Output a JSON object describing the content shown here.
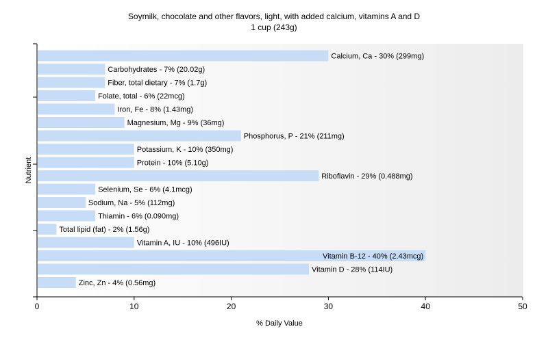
{
  "chart_data": {
    "type": "bar",
    "orientation": "horizontal",
    "title": "Soymilk, chocolate and other flavors, light, with added calcium, vitamins A and D",
    "subtitle": "1 cup (243g)",
    "xlabel": "% Daily Value",
    "ylabel": "Nutrient",
    "xlim": [
      0,
      50
    ],
    "xticks": [
      "0",
      "10",
      "20",
      "30",
      "40",
      "50"
    ],
    "grid": false,
    "bar_color": "#c6dcf7",
    "background_gradient": [
      "#ffffff",
      "#ececec"
    ],
    "categories": [
      "Calcium, Ca",
      "Carbohydrates",
      "Fiber, total dietary",
      "Folate, total",
      "Iron, Fe",
      "Magnesium, Mg",
      "Phosphorus, P",
      "Potassium, K",
      "Protein",
      "Riboflavin",
      "Selenium, Se",
      "Sodium, Na",
      "Thiamin",
      "Total lipid (fat)",
      "Vitamin A, IU",
      "Vitamin B-12",
      "Vitamin D",
      "Zinc, Zn"
    ],
    "values": [
      30,
      7,
      7,
      6,
      8,
      9,
      21,
      10,
      10,
      29,
      6,
      5,
      6,
      2,
      10,
      40,
      28,
      4
    ],
    "labels": [
      "Calcium, Ca - 30% (299mg)",
      "Carbohydrates - 7% (20.02g)",
      "Fiber, total dietary - 7% (1.7g)",
      "Folate, total - 6% (22mcg)",
      "Iron, Fe - 8% (1.43mg)",
      "Magnesium, Mg - 9% (36mg)",
      "Phosphorus, P - 21% (211mg)",
      "Potassium, K - 10% (350mg)",
      "Protein - 10% (5.10g)",
      "Riboflavin - 29% (0.488mg)",
      "Selenium, Se - 6% (4.1mcg)",
      "Sodium, Na - 5% (112mg)",
      "Thiamin - 6% (0.090mg)",
      "Total lipid (fat) - 2% (1.56g)",
      "Vitamin A, IU - 10% (496IU)",
      "Vitamin B-12 - 40% (2.43mcg)",
      "Vitamin D - 28% (114IU)",
      "Zinc, Zn - 4% (0.56mg)"
    ]
  }
}
